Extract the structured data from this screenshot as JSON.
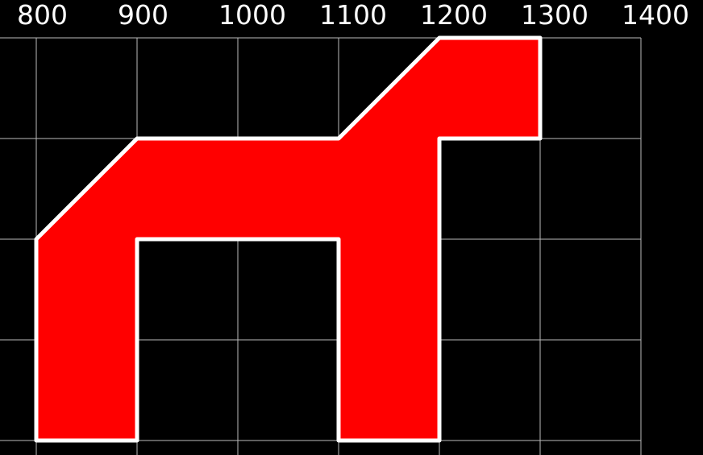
{
  "chart_data": {
    "type": "polygon",
    "x": [
      800,
      900,
      1100,
      1200,
      1300,
      1300,
      1200,
      1200,
      1100,
      1100,
      900,
      900,
      800
    ],
    "y": [
      300,
      200,
      200,
      100,
      100,
      200,
      200,
      500,
      500,
      300,
      300,
      500,
      500
    ],
    "fill": "#ff0000",
    "stroke": "#ffffff",
    "xlim": [
      764,
      1461.6
    ],
    "ylim": [
      514.4,
      62.4
    ],
    "xticks": [
      800,
      900,
      1000,
      1100,
      1200,
      1300,
      1400
    ],
    "yticks": [
      100,
      200,
      300,
      400,
      500
    ],
    "grid": true,
    "grid_color": "#bbbbbb",
    "background": "#000000"
  }
}
